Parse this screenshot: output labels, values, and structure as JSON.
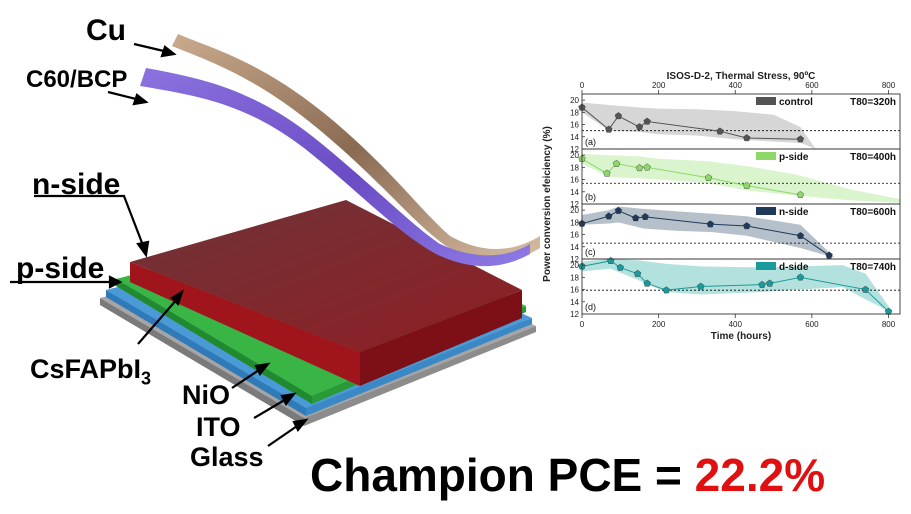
{
  "device": {
    "layers": {
      "cu": "Cu",
      "c60": "C60/BCP",
      "n_side": "n-side",
      "p_side": "p-side",
      "perovskite_main": "CsFAPbI",
      "perovskite_sub": "3",
      "nio": "NiO",
      "ito": "ITO",
      "glass": "Glass"
    },
    "colors": {
      "cu": "#a98a72",
      "c60": "#7b5fd0",
      "perovskite": "#8a1c22",
      "nio": "#2fa83a",
      "ito": "#3b8ed0",
      "glass": "#9a9a9a"
    }
  },
  "champion": {
    "prefix": "Champion PCE = ",
    "value": "22.2%",
    "value_color": "#e01010"
  },
  "chart_data": {
    "type": "line",
    "title": "ISOS-D-2, Thermal Stress, 90ºC",
    "xlabel": "Time (hours)",
    "ylabel": "Power conversion efeiciency (%)",
    "xlim": [
      0,
      830
    ],
    "x_ticks": [
      0,
      200,
      400,
      600,
      800
    ],
    "ylim": [
      12,
      21
    ],
    "y_ticks": [
      12,
      14,
      16,
      18,
      20
    ],
    "panels": [
      {
        "panel_label": "(a)",
        "legend_name": "control",
        "t80": "T80=320h",
        "color": "#555555",
        "band_color": "#cfcfcf",
        "marker": "pentagon",
        "threshold": 15.0,
        "x": [
          0,
          70,
          95,
          150,
          170,
          360,
          430,
          570
        ],
        "y": [
          18.8,
          15.2,
          17.4,
          15.6,
          16.5,
          14.9,
          13.8,
          13.6
        ],
        "band_upper": [
          19.6,
          19.2,
          18.8,
          18.6,
          18.5,
          18.2,
          17.6,
          15.6,
          12.0
        ],
        "band_lower": [
          18.0,
          15.0,
          14.8,
          14.4,
          14.2,
          13.6,
          13.2,
          13.0,
          12.0
        ],
        "band_x": [
          0,
          70,
          150,
          200,
          300,
          400,
          500,
          570,
          610
        ]
      },
      {
        "panel_label": "(b)",
        "legend_name": "p-side",
        "t80": "T80=400h",
        "color": "#8ed86a",
        "band_color": "#d4f2c4",
        "marker": "pentagon",
        "threshold": 15.4,
        "x": [
          0,
          65,
          90,
          150,
          170,
          330,
          430,
          570
        ],
        "y": [
          19.4,
          17.0,
          18.6,
          17.9,
          18.0,
          16.3,
          15.0,
          13.5
        ],
        "band_upper": [
          20.2,
          20.0,
          19.8,
          19.4,
          19.0,
          18.2,
          16.8,
          14.4,
          12.8
        ],
        "band_lower": [
          18.6,
          16.4,
          16.2,
          16.0,
          15.4,
          14.2,
          13.4,
          12.6,
          12.2
        ],
        "band_x": [
          0,
          70,
          150,
          200,
          330,
          430,
          560,
          700,
          830
        ]
      },
      {
        "panel_label": "(c)",
        "legend_name": "n-side",
        "t80": "T80=600h",
        "color": "#1f3a5a",
        "band_color": "#a9b5c2",
        "marker": "pentagon",
        "threshold": 14.6,
        "x": [
          0,
          70,
          95,
          140,
          165,
          335,
          430,
          570,
          645
        ],
        "y": [
          17.8,
          19.0,
          19.9,
          18.7,
          18.9,
          17.7,
          17.4,
          15.8,
          12.6
        ],
        "band_upper": [
          19.2,
          20.0,
          20.6,
          20.2,
          19.8,
          19.4,
          19.0,
          17.6,
          12.2
        ],
        "band_lower": [
          17.6,
          17.8,
          18.0,
          17.0,
          16.6,
          16.4,
          15.8,
          13.8,
          12.2
        ],
        "band_x": [
          0,
          70,
          95,
          160,
          250,
          340,
          430,
          570,
          660
        ]
      },
      {
        "panel_label": "(d)",
        "legend_name": "d-side",
        "t80": "T80=740h",
        "color": "#1a9a9a",
        "band_color": "#a6dcd8",
        "marker": "pentagon",
        "threshold": 15.9,
        "x": [
          0,
          75,
          100,
          145,
          170,
          220,
          310,
          470,
          490,
          570,
          740,
          800
        ],
        "y": [
          19.8,
          20.7,
          19.6,
          18.6,
          17.0,
          15.9,
          16.5,
          16.8,
          17.0,
          18.0,
          16.0,
          12.4
        ],
        "band_upper": [
          20.6,
          21.0,
          20.8,
          20.2,
          19.8,
          19.6,
          19.8,
          20.0,
          18.6,
          12.4
        ],
        "band_lower": [
          19.0,
          19.4,
          17.6,
          15.6,
          15.2,
          15.6,
          16.0,
          16.4,
          14.4,
          12.2
        ],
        "band_x": [
          0,
          75,
          145,
          220,
          310,
          470,
          570,
          680,
          740,
          810
        ]
      }
    ]
  }
}
